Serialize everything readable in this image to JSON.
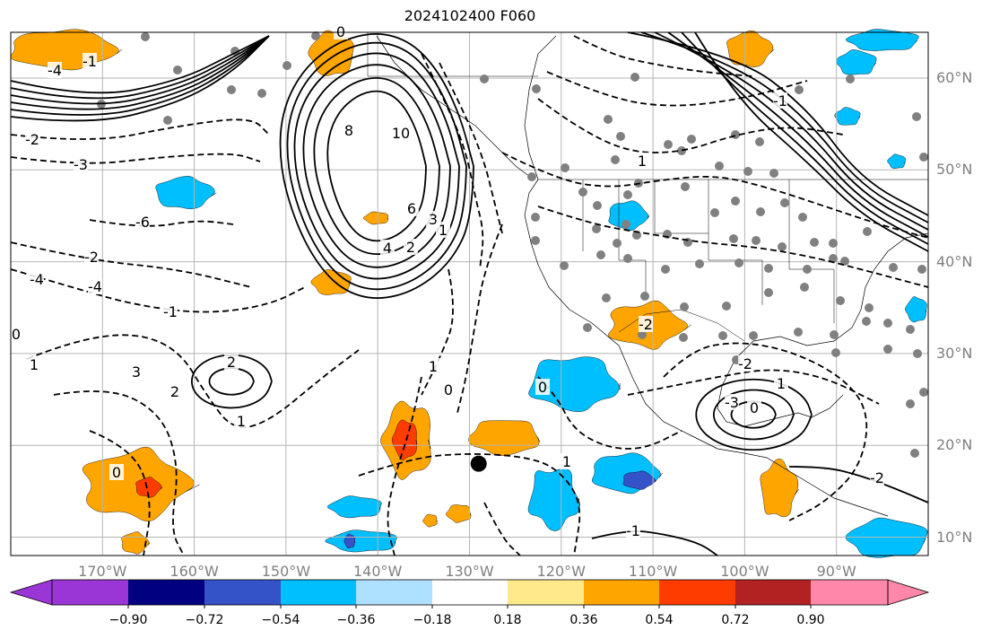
{
  "title": "2024102400 F060",
  "lat_labels": [
    {
      "text": "60°N",
      "lat": 60
    },
    {
      "text": "50°N",
      "lat": 50
    },
    {
      "text": "40°N",
      "lat": 40
    },
    {
      "text": "30°N",
      "lat": 30
    },
    {
      "text": "20°N",
      "lat": 20
    },
    {
      "text": "10°N",
      "lat": 10
    }
  ],
  "lon_labels": [
    {
      "text": "170°W",
      "lon": -170
    },
    {
      "text": "160°W",
      "lon": -160
    },
    {
      "text": "150°W",
      "lon": -150
    },
    {
      "text": "140°W",
      "lon": -140
    },
    {
      "text": "130°W",
      "lon": -130
    },
    {
      "text": "120°W",
      "lon": -120
    },
    {
      "text": "110°W",
      "lon": -110
    },
    {
      "text": "100°W",
      "lon": -100
    },
    {
      "text": "90°W",
      "lon": -90
    }
  ],
  "colorbar": {
    "colors": [
      "#9a35d6",
      "#000080",
      "#3553c8",
      "#00bfff",
      "#aee0ff",
      "#ffffff",
      "#ffe98a",
      "#ffa500",
      "#ff3c00",
      "#b22222",
      "#ff88aa"
    ],
    "tick_labels": [
      "−0.90",
      "−0.72",
      "−0.54",
      "−0.36",
      "−0.18",
      "0.18",
      "0.36",
      "0.54",
      "0.72",
      "0.90"
    ]
  },
  "contour_labels": [
    "8",
    "10",
    "6",
    "4",
    "3",
    "2",
    "1",
    "0",
    "-1",
    "-2",
    "-3",
    "-4",
    "-6",
    "2",
    "1",
    "0",
    "1",
    "2",
    "0",
    "-1",
    "-2",
    "-4",
    "-3",
    "0",
    "1",
    "-2",
    "3",
    "-4",
    "-2",
    "0",
    "1",
    "-1",
    "0",
    "1",
    "1",
    "-1",
    "-2"
  ],
  "marker": {
    "lon": -129,
    "lat": 18
  }
}
